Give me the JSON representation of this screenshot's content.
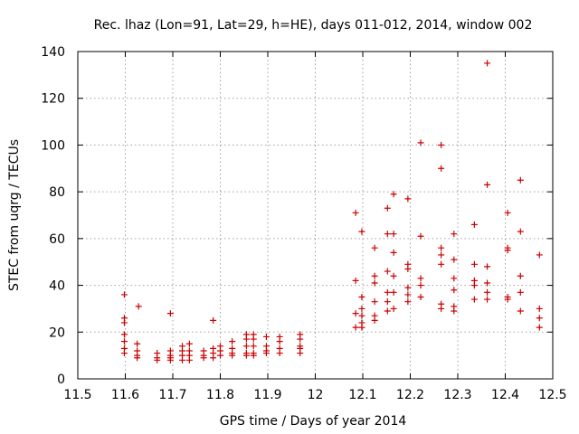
{
  "chart_data": {
    "type": "scatter",
    "title": "Rec. lhaz (Lon=91, Lat=29, h=HE), days 011-012, 2014, window 002",
    "xlabel": "GPS time / Days of year 2014",
    "ylabel": "STEC from uqrg / TECUs",
    "xlim": [
      11.5,
      12.5
    ],
    "ylim": [
      0,
      140
    ],
    "xticks": [
      "11.5",
      "11.6",
      "11.7",
      "11.8",
      "11.9",
      "12",
      "12.1",
      "12.2",
      "12.3",
      "12.4",
      "12.5"
    ],
    "yticks": [
      "0",
      "20",
      "40",
      "60",
      "80",
      "100",
      "120",
      "140"
    ],
    "grid": true,
    "marker": "plus",
    "color": "#cc0000",
    "series": [
      {
        "points": [
          [
            11.598,
            36
          ],
          [
            11.598,
            26
          ],
          [
            11.598,
            24
          ],
          [
            11.598,
            19
          ],
          [
            11.598,
            16
          ],
          [
            11.598,
            13
          ],
          [
            11.598,
            11
          ],
          [
            11.628,
            31
          ],
          [
            11.625,
            15
          ],
          [
            11.625,
            12
          ],
          [
            11.625,
            10
          ],
          [
            11.625,
            9
          ],
          [
            11.667,
            11
          ],
          [
            11.667,
            9
          ],
          [
            11.667,
            8
          ],
          [
            11.695,
            28
          ],
          [
            11.695,
            12
          ],
          [
            11.695,
            10
          ],
          [
            11.695,
            9
          ],
          [
            11.695,
            8
          ],
          [
            11.72,
            14
          ],
          [
            11.72,
            12
          ],
          [
            11.72,
            10
          ],
          [
            11.72,
            8
          ],
          [
            11.735,
            15
          ],
          [
            11.735,
            12
          ],
          [
            11.735,
            10
          ],
          [
            11.735,
            8
          ],
          [
            11.765,
            12
          ],
          [
            11.765,
            10
          ],
          [
            11.765,
            9
          ],
          [
            11.785,
            25
          ],
          [
            11.785,
            13
          ],
          [
            11.785,
            11
          ],
          [
            11.785,
            9
          ],
          [
            11.8,
            14
          ],
          [
            11.8,
            12
          ],
          [
            11.8,
            10
          ],
          [
            11.825,
            16
          ],
          [
            11.825,
            13
          ],
          [
            11.825,
            11
          ],
          [
            11.825,
            10
          ],
          [
            11.855,
            19
          ],
          [
            11.855,
            17
          ],
          [
            11.855,
            14
          ],
          [
            11.855,
            11
          ],
          [
            11.855,
            10
          ],
          [
            11.87,
            19
          ],
          [
            11.87,
            17
          ],
          [
            11.87,
            14
          ],
          [
            11.87,
            11
          ],
          [
            11.87,
            10
          ],
          [
            11.897,
            18
          ],
          [
            11.897,
            14
          ],
          [
            11.897,
            12
          ],
          [
            11.897,
            11
          ],
          [
            11.925,
            18
          ],
          [
            11.925,
            16
          ],
          [
            11.925,
            13
          ],
          [
            11.925,
            11
          ],
          [
            11.968,
            19
          ],
          [
            11.968,
            17
          ],
          [
            11.968,
            14
          ],
          [
            11.968,
            13
          ],
          [
            11.968,
            11
          ],
          [
            12.085,
            71
          ],
          [
            12.085,
            42
          ],
          [
            12.085,
            28
          ],
          [
            12.085,
            22
          ],
          [
            12.098,
            63
          ],
          [
            12.098,
            35
          ],
          [
            12.098,
            30
          ],
          [
            12.098,
            27
          ],
          [
            12.098,
            24
          ],
          [
            12.098,
            22
          ],
          [
            12.125,
            56
          ],
          [
            12.125,
            44
          ],
          [
            12.125,
            41
          ],
          [
            12.125,
            33
          ],
          [
            12.125,
            27
          ],
          [
            12.125,
            25
          ],
          [
            12.152,
            73
          ],
          [
            12.152,
            62
          ],
          [
            12.152,
            46
          ],
          [
            12.152,
            37
          ],
          [
            12.152,
            33
          ],
          [
            12.152,
            29
          ],
          [
            12.165,
            79
          ],
          [
            12.165,
            62
          ],
          [
            12.165,
            54
          ],
          [
            12.165,
            44
          ],
          [
            12.165,
            37
          ],
          [
            12.165,
            30
          ],
          [
            12.195,
            77
          ],
          [
            12.195,
            49
          ],
          [
            12.195,
            47
          ],
          [
            12.195,
            39
          ],
          [
            12.195,
            36
          ],
          [
            12.195,
            33
          ],
          [
            12.222,
            101
          ],
          [
            12.222,
            61
          ],
          [
            12.222,
            43
          ],
          [
            12.222,
            40
          ],
          [
            12.222,
            35
          ],
          [
            12.265,
            100
          ],
          [
            12.265,
            90
          ],
          [
            12.265,
            56
          ],
          [
            12.265,
            53
          ],
          [
            12.265,
            49
          ],
          [
            12.265,
            32
          ],
          [
            12.265,
            30
          ],
          [
            12.292,
            62
          ],
          [
            12.292,
            51
          ],
          [
            12.292,
            43
          ],
          [
            12.292,
            38
          ],
          [
            12.292,
            31
          ],
          [
            12.292,
            29
          ],
          [
            12.335,
            66
          ],
          [
            12.335,
            49
          ],
          [
            12.335,
            42
          ],
          [
            12.335,
            40
          ],
          [
            12.335,
            34
          ],
          [
            12.362,
            135
          ],
          [
            12.362,
            83
          ],
          [
            12.362,
            48
          ],
          [
            12.362,
            41
          ],
          [
            12.362,
            37
          ],
          [
            12.362,
            34
          ],
          [
            12.405,
            71
          ],
          [
            12.405,
            56
          ],
          [
            12.405,
            55
          ],
          [
            12.405,
            35
          ],
          [
            12.405,
            34
          ],
          [
            12.432,
            85
          ],
          [
            12.432,
            63
          ],
          [
            12.432,
            44
          ],
          [
            12.432,
            37
          ],
          [
            12.432,
            29
          ],
          [
            12.472,
            53
          ],
          [
            12.472,
            30
          ],
          [
            12.472,
            26
          ],
          [
            12.472,
            22
          ]
        ]
      }
    ]
  }
}
